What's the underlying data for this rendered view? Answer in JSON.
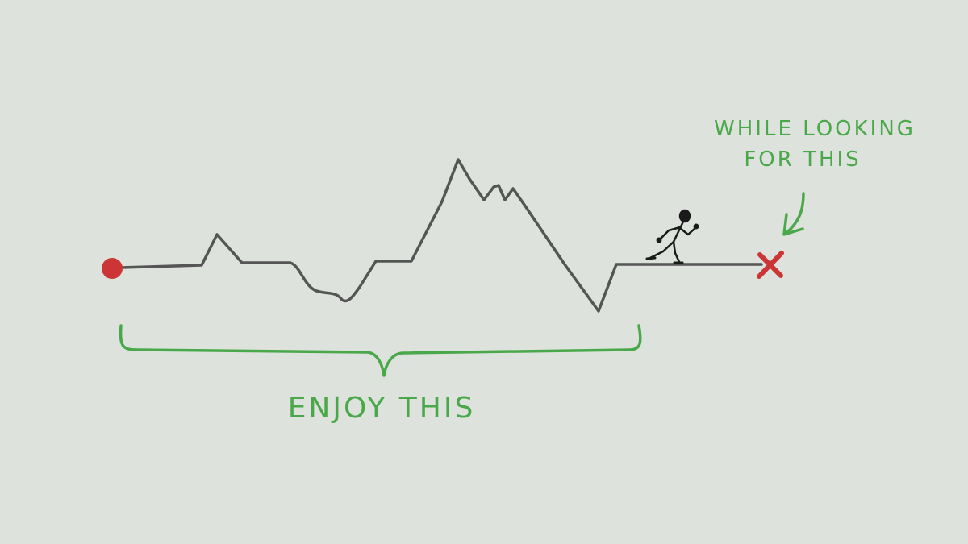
{
  "labels": {
    "enjoy": "ENJOY THIS",
    "while_line1": "WHILE LOOKING",
    "while_line2": "FOR THIS"
  },
  "colors": {
    "background": "#dde3dc",
    "path_line": "#555555",
    "annotation_green": "#4aa84a",
    "start_dot": "#cc3535",
    "goal_cross": "#cc3535",
    "figure": "#1a1a1a"
  },
  "icons": {
    "start": "start-dot-icon",
    "goal": "x-mark-icon",
    "runner": "running-stick-figure-icon"
  }
}
